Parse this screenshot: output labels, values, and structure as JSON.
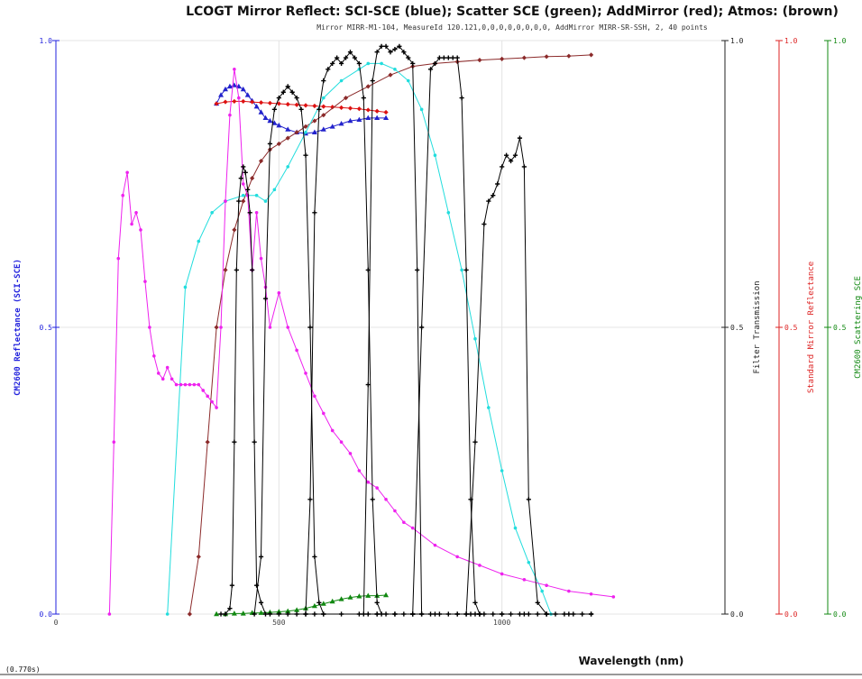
{
  "chart_data": {
    "type": "line",
    "title": "LCOGT Mirror Reflect: SCI-SCE (blue); Scatter SCE (green); AddMirror (red); Atmos: (brown)",
    "subtitle": "Mirror MIRR-M1-104, MeasureId 120.121,0,0,0,0,0,0,0,0, AddMirror MIRR-SR-SSH, 2, 40 points",
    "xlabel": "Wavelength (nm)",
    "xlim": [
      0,
      1500
    ],
    "x_ticks": [
      "0",
      "500",
      "1000"
    ],
    "corner_label": "(0.770s)",
    "axes": [
      {
        "id": "left",
        "label": "CM2600 Reflectance (SCI-SCE)",
        "color": "#2222dd",
        "ticks": [
          "0.0",
          "0.5",
          "1.0"
        ]
      },
      {
        "id": "filter",
        "label": "Filter Transmission",
        "color": "#222222",
        "ticks": [
          "0.0",
          "0.5",
          "1.0"
        ]
      },
      {
        "id": "standard",
        "label": "Standard Mirror Reflectance",
        "color": "#dd2222",
        "ticks": [
          "0.0",
          "0.5",
          "1.0"
        ]
      },
      {
        "id": "scatter",
        "label": "CM2600 Scattering SCE",
        "color": "#118811",
        "ticks": [
          "0.0",
          "0.5",
          "1.0"
        ]
      }
    ],
    "ylim": [
      0,
      1
    ],
    "series": [
      {
        "color": "#2222cc",
        "marker": "triangle",
        "x": [
          360,
          370,
          380,
          390,
          400,
          410,
          420,
          430,
          440,
          450,
          460,
          470,
          480,
          490,
          500,
          520,
          540,
          560,
          580,
          600,
          620,
          640,
          660,
          680,
          700,
          720,
          740
        ],
        "y": [
          0.89,
          0.905,
          0.915,
          0.92,
          0.922,
          0.92,
          0.915,
          0.905,
          0.895,
          0.885,
          0.875,
          0.865,
          0.86,
          0.856,
          0.852,
          0.845,
          0.84,
          0.838,
          0.84,
          0.845,
          0.85,
          0.855,
          0.86,
          0.862,
          0.865,
          0.865,
          0.865
        ]
      },
      {
        "color": "#dd1111",
        "marker": "diamond",
        "x": [
          360,
          380,
          400,
          420,
          440,
          460,
          480,
          500,
          520,
          540,
          560,
          580,
          600,
          620,
          640,
          660,
          680,
          700,
          720,
          740
        ],
        "y": [
          0.89,
          0.893,
          0.894,
          0.894,
          0.893,
          0.892,
          0.891,
          0.89,
          0.889,
          0.888,
          0.887,
          0.886,
          0.885,
          0.884,
          0.883,
          0.882,
          0.881,
          0.879,
          0.877,
          0.875
        ]
      },
      {
        "color": "#118811",
        "marker": "triangle",
        "x": [
          360,
          380,
          400,
          420,
          440,
          460,
          480,
          500,
          520,
          540,
          560,
          580,
          600,
          620,
          640,
          660,
          680,
          700,
          720,
          740
        ],
        "y": [
          0.0,
          0.0,
          0.001,
          0.001,
          0.002,
          0.002,
          0.003,
          0.004,
          0.005,
          0.007,
          0.01,
          0.014,
          0.018,
          0.022,
          0.026,
          0.029,
          0.031,
          0.032,
          0.032,
          0.033
        ]
      },
      {
        "color": "#8b2a2a",
        "marker": "diamond",
        "x": [
          300,
          320,
          340,
          360,
          380,
          400,
          420,
          440,
          460,
          480,
          500,
          520,
          540,
          560,
          580,
          600,
          650,
          700,
          750,
          800,
          850,
          900,
          950,
          1000,
          1050,
          1100,
          1150,
          1200
        ],
        "y": [
          0.0,
          0.1,
          0.3,
          0.5,
          0.6,
          0.67,
          0.72,
          0.76,
          0.79,
          0.81,
          0.82,
          0.83,
          0.84,
          0.85,
          0.86,
          0.87,
          0.9,
          0.92,
          0.94,
          0.955,
          0.96,
          0.963,
          0.966,
          0.968,
          0.97,
          0.972,
          0.973,
          0.975
        ]
      },
      {
        "color": "#22dddd",
        "marker": "dot",
        "x": [
          250,
          290,
          320,
          350,
          380,
          420,
          450,
          470,
          490,
          520,
          560,
          600,
          640,
          680,
          700,
          730,
          760,
          790,
          820,
          850,
          880,
          910,
          940,
          970,
          1000,
          1030,
          1060,
          1090,
          1110
        ],
        "y": [
          0.0,
          0.57,
          0.65,
          0.7,
          0.72,
          0.73,
          0.73,
          0.72,
          0.74,
          0.78,
          0.84,
          0.9,
          0.93,
          0.95,
          0.96,
          0.96,
          0.95,
          0.93,
          0.88,
          0.8,
          0.7,
          0.6,
          0.48,
          0.36,
          0.25,
          0.15,
          0.09,
          0.04,
          0.0
        ]
      },
      {
        "color": "#ee22ee",
        "marker": "dot",
        "x": [
          120,
          130,
          140,
          150,
          160,
          170,
          180,
          190,
          200,
          210,
          220,
          230,
          240,
          250,
          260,
          270,
          280,
          290,
          300,
          310,
          320,
          330,
          340,
          350,
          360,
          370,
          380,
          390,
          400,
          410,
          420,
          430,
          440,
          450,
          460,
          470,
          480,
          500,
          520,
          540,
          560,
          580,
          600,
          620,
          640,
          660,
          680,
          700,
          720,
          740,
          760,
          780,
          800,
          850,
          900,
          950,
          1000,
          1050,
          1100,
          1150,
          1200,
          1250
        ],
        "y": [
          0.0,
          0.3,
          0.62,
          0.73,
          0.77,
          0.68,
          0.7,
          0.67,
          0.58,
          0.5,
          0.45,
          0.42,
          0.41,
          0.43,
          0.41,
          0.4,
          0.4,
          0.4,
          0.4,
          0.4,
          0.4,
          0.39,
          0.38,
          0.37,
          0.36,
          0.5,
          0.72,
          0.87,
          0.95,
          0.9,
          0.75,
          0.73,
          0.6,
          0.7,
          0.62,
          0.57,
          0.5,
          0.56,
          0.5,
          0.46,
          0.42,
          0.38,
          0.35,
          0.32,
          0.3,
          0.28,
          0.25,
          0.23,
          0.22,
          0.2,
          0.18,
          0.16,
          0.15,
          0.12,
          0.1,
          0.085,
          0.07,
          0.06,
          0.05,
          0.04,
          0.035,
          0.03
        ]
      },
      {
        "color": "#000000",
        "marker": "plus",
        "x": [
          370,
          380,
          390,
          395,
          400,
          405,
          410,
          415,
          420,
          425,
          430,
          435,
          440,
          445,
          450,
          460,
          470,
          480,
          500,
          520,
          540,
          560,
          580,
          600,
          640,
          680,
          700,
          720,
          740,
          760,
          780,
          800,
          820,
          840,
          860,
          880,
          900,
          920,
          930,
          940,
          950,
          960,
          980,
          1000,
          1020,
          1040,
          1060,
          1080,
          1100
        ],
        "y": [
          0.0,
          0.0,
          0.01,
          0.05,
          0.3,
          0.6,
          0.72,
          0.76,
          0.78,
          0.77,
          0.74,
          0.7,
          0.6,
          0.3,
          0.05,
          0.02,
          0.0,
          0.0,
          0.0,
          0.0,
          0.0,
          0.0,
          0.0,
          0.0,
          0.0,
          0.0,
          0.0,
          0.0,
          0.0,
          0.0,
          0.0,
          0.0,
          0.0,
          0.0,
          0.0,
          0.0,
          0.0,
          0.0,
          0.0,
          0.0,
          0.0,
          0.0,
          0.0,
          0.0,
          0.0,
          0.0,
          0.0,
          0.0,
          0.0
        ]
      },
      {
        "color": "#000000",
        "marker": "plus",
        "x": [
          445,
          460,
          470,
          480,
          490,
          500,
          510,
          520,
          530,
          540,
          550,
          560,
          570,
          580,
          590,
          600
        ],
        "y": [
          0.0,
          0.1,
          0.55,
          0.82,
          0.88,
          0.9,
          0.91,
          0.92,
          0.91,
          0.9,
          0.88,
          0.8,
          0.5,
          0.1,
          0.02,
          0.0
        ]
      },
      {
        "color": "#000000",
        "marker": "plus",
        "x": [
          560,
          570,
          580,
          590,
          600,
          610,
          620,
          630,
          640,
          650,
          660,
          670,
          680,
          690,
          700,
          710,
          720,
          730
        ],
        "y": [
          0.0,
          0.2,
          0.7,
          0.88,
          0.93,
          0.95,
          0.96,
          0.97,
          0.96,
          0.97,
          0.98,
          0.97,
          0.96,
          0.9,
          0.6,
          0.2,
          0.02,
          0.0
        ]
      },
      {
        "color": "#000000",
        "marker": "plus",
        "x": [
          690,
          700,
          710,
          720,
          730,
          740,
          750,
          760,
          770,
          780,
          790,
          800,
          810,
          820
        ],
        "y": [
          0.0,
          0.4,
          0.93,
          0.98,
          0.99,
          0.99,
          0.98,
          0.985,
          0.99,
          0.98,
          0.97,
          0.96,
          0.6,
          0.0
        ]
      },
      {
        "color": "#000000",
        "marker": "plus",
        "x": [
          800,
          820,
          840,
          850,
          860,
          870,
          880,
          890,
          900,
          910,
          920,
          930,
          940,
          950
        ],
        "y": [
          0.0,
          0.5,
          0.95,
          0.96,
          0.97,
          0.97,
          0.97,
          0.97,
          0.97,
          0.9,
          0.6,
          0.2,
          0.02,
          0.0
        ]
      },
      {
        "color": "#000000",
        "marker": "plus",
        "x": [
          920,
          940,
          960,
          970,
          980,
          990,
          1000,
          1010,
          1020,
          1030,
          1040,
          1050,
          1060,
          1080,
          1100,
          1120,
          1140,
          1160,
          1180,
          1200
        ],
        "y": [
          0.0,
          0.3,
          0.68,
          0.72,
          0.73,
          0.75,
          0.78,
          0.8,
          0.79,
          0.8,
          0.83,
          0.78,
          0.2,
          0.02,
          0.0,
          0.0,
          0.0,
          0.0,
          0.0,
          0.0
        ]
      },
      {
        "color": "#000000",
        "marker": "plus",
        "x": [
          720,
          760,
          800,
          850,
          900,
          950,
          1000,
          1050,
          1100,
          1150,
          1200
        ],
        "y": [
          0.0,
          0.0,
          0.0,
          0.0,
          0.0,
          0.0,
          0.0,
          0.0,
          0.0,
          0.0,
          0.0
        ]
      }
    ]
  }
}
